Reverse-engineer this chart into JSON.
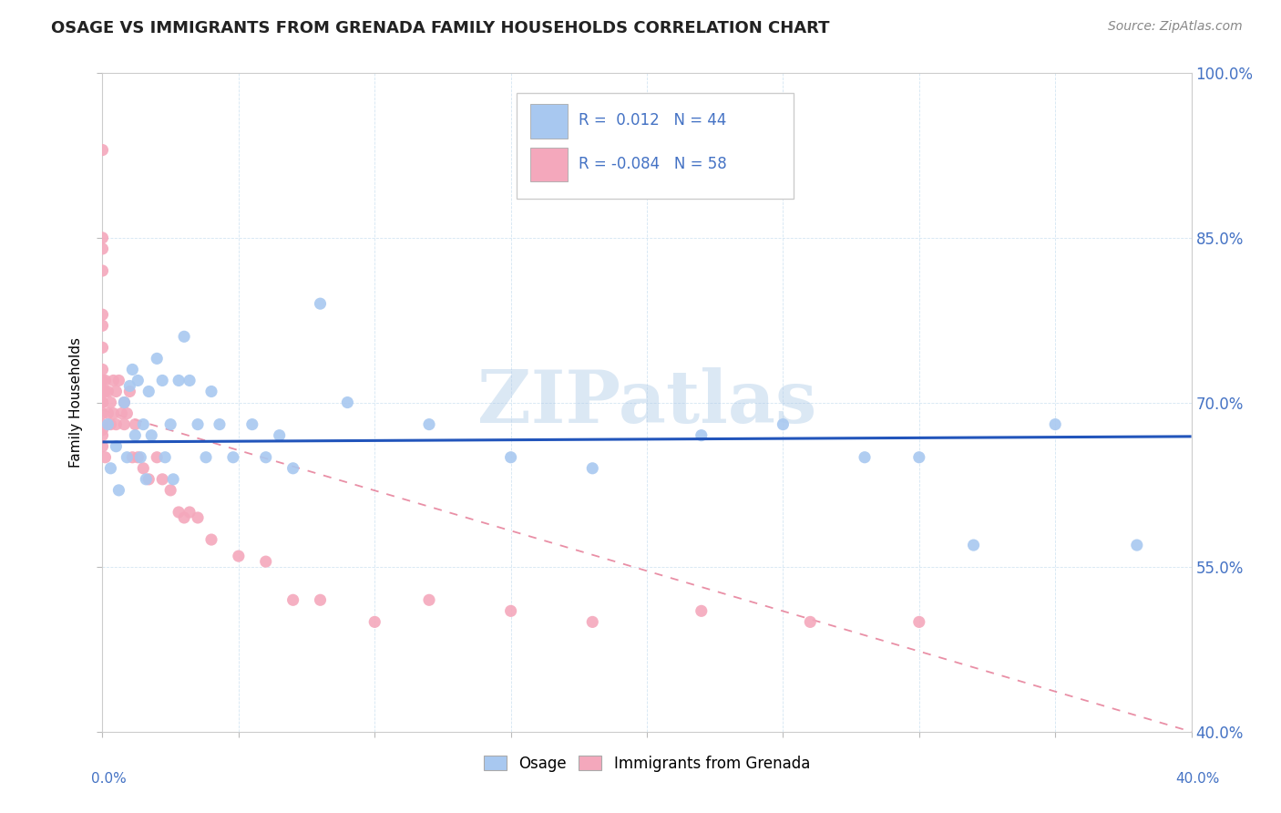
{
  "title": "OSAGE VS IMMIGRANTS FROM GRENADA FAMILY HOUSEHOLDS CORRELATION CHART",
  "source": "Source: ZipAtlas.com",
  "ylabel": "Family Households",
  "yticks": [
    "40.0%",
    "55.0%",
    "70.0%",
    "85.0%",
    "100.0%"
  ],
  "ytick_vals": [
    0.4,
    0.55,
    0.7,
    0.85,
    1.0
  ],
  "xmin": 0.0,
  "xmax": 0.4,
  "ymin": 0.4,
  "ymax": 1.0,
  "legend_blue_R": "0.012",
  "legend_blue_N": "44",
  "legend_pink_R": "-0.084",
  "legend_pink_N": "58",
  "blue_color": "#A8C8F0",
  "pink_color": "#F4A8BC",
  "trendline_blue_color": "#2255BB",
  "trendline_pink_color": "#E06080",
  "watermark": "ZIPatlas",
  "blue_scatter_x": [
    0.002,
    0.003,
    0.005,
    0.006,
    0.008,
    0.009,
    0.01,
    0.011,
    0.012,
    0.013,
    0.014,
    0.015,
    0.016,
    0.017,
    0.018,
    0.02,
    0.022,
    0.023,
    0.025,
    0.026,
    0.028,
    0.03,
    0.032,
    0.035,
    0.038,
    0.04,
    0.043,
    0.048,
    0.055,
    0.06,
    0.065,
    0.07,
    0.08,
    0.09,
    0.12,
    0.15,
    0.18,
    0.22,
    0.25,
    0.28,
    0.3,
    0.32,
    0.35,
    0.38
  ],
  "blue_scatter_y": [
    0.68,
    0.64,
    0.66,
    0.62,
    0.7,
    0.65,
    0.715,
    0.73,
    0.67,
    0.72,
    0.65,
    0.68,
    0.63,
    0.71,
    0.67,
    0.74,
    0.72,
    0.65,
    0.68,
    0.63,
    0.72,
    0.76,
    0.72,
    0.68,
    0.65,
    0.71,
    0.68,
    0.65,
    0.68,
    0.65,
    0.67,
    0.64,
    0.79,
    0.7,
    0.68,
    0.65,
    0.64,
    0.67,
    0.68,
    0.65,
    0.65,
    0.57,
    0.68,
    0.57
  ],
  "pink_scatter_x": [
    0.0,
    0.0,
    0.0,
    0.0,
    0.0,
    0.0,
    0.0,
    0.0,
    0.0,
    0.0,
    0.0,
    0.0,
    0.0,
    0.0,
    0.0,
    0.0,
    0.0,
    0.001,
    0.001,
    0.001,
    0.002,
    0.002,
    0.003,
    0.003,
    0.004,
    0.004,
    0.005,
    0.005,
    0.006,
    0.007,
    0.008,
    0.008,
    0.009,
    0.01,
    0.011,
    0.012,
    0.013,
    0.015,
    0.017,
    0.02,
    0.022,
    0.025,
    0.028,
    0.03,
    0.032,
    0.035,
    0.04,
    0.05,
    0.06,
    0.07,
    0.08,
    0.1,
    0.12,
    0.15,
    0.18,
    0.22,
    0.26,
    0.3
  ],
  "pink_scatter_y": [
    0.93,
    0.85,
    0.84,
    0.82,
    0.78,
    0.77,
    0.75,
    0.73,
    0.72,
    0.71,
    0.7,
    0.7,
    0.69,
    0.68,
    0.675,
    0.67,
    0.66,
    0.72,
    0.71,
    0.65,
    0.71,
    0.69,
    0.7,
    0.68,
    0.72,
    0.69,
    0.71,
    0.68,
    0.72,
    0.69,
    0.7,
    0.68,
    0.69,
    0.71,
    0.65,
    0.68,
    0.65,
    0.64,
    0.63,
    0.65,
    0.63,
    0.62,
    0.6,
    0.595,
    0.6,
    0.595,
    0.575,
    0.56,
    0.555,
    0.52,
    0.52,
    0.5,
    0.52,
    0.51,
    0.5,
    0.51,
    0.5,
    0.5
  ],
  "blue_trendline_x": [
    0.0,
    0.4
  ],
  "blue_trendline_y": [
    0.664,
    0.669
  ],
  "pink_trendline_x0": 0.0,
  "pink_trendline_y0": 0.693,
  "pink_trendline_x1": 0.4,
  "pink_trendline_y1": 0.4
}
